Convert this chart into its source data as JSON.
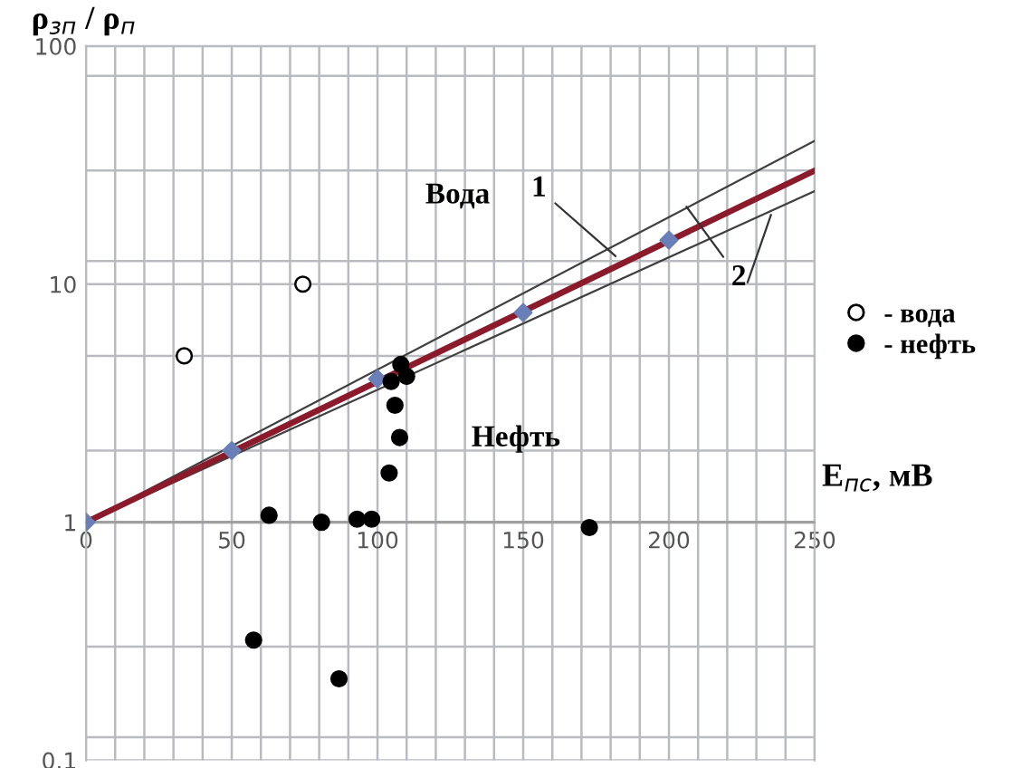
{
  "chart_data": {
    "type": "scatter",
    "xlabel": "E$_{пс}$, мВ",
    "ylabel": "ρ$_{зп}$ / ρ$_{п}$",
    "log": "y",
    "grid": true,
    "legend": "right",
    "xlim": [
      0,
      250
    ],
    "ylim": [
      0.1,
      100
    ],
    "xticks": [
      0,
      {
        "value": 10,
        "label": null
      },
      {
        "value": 20,
        "label": null
      },
      {
        "value": 30,
        "label": null
      },
      {
        "value": 40,
        "label": null
      },
      50,
      {
        "value": 60,
        "label": null
      },
      {
        "value": 70,
        "label": null
      },
      {
        "value": 80,
        "label": null
      },
      {
        "value": 90,
        "label": null
      },
      100,
      {
        "value": 110,
        "label": null
      },
      {
        "value": 120,
        "label": null
      },
      {
        "value": 130,
        "label": null
      },
      {
        "value": 140,
        "label": null
      },
      150,
      {
        "value": 160,
        "label": null
      },
      {
        "value": 170,
        "label": null
      },
      {
        "value": 180,
        "label": null
      },
      {
        "value": 190,
        "label": null
      },
      200,
      {
        "value": 210,
        "label": null
      },
      {
        "value": 220,
        "label": null
      },
      {
        "value": 230,
        "label": null
      },
      {
        "value": 240,
        "label": null
      },
      250
    ],
    "yticks": [
      0.1,
      {
        "value": 0.125,
        "label": null
      },
      {
        "value": 0.3,
        "label": null
      },
      1,
      {
        "value": 2,
        "label": null
      },
      {
        "value": 5,
        "label": null
      },
      10,
      {
        "value": 12.5,
        "label": null
      },
      {
        "value": 30,
        "label": null
      },
      {
        "value": 75,
        "label": null
      },
      100
    ],
    "ref_lines": [
      {
        "axis": "y",
        "value": 1,
        "color": "#a0a0a0"
      }
    ],
    "series": [
      {
        "type": "line",
        "x": [
          0,
          250
        ],
        "values": [
          1,
          40
        ],
        "color": "#404040"
      },
      {
        "type": "line",
        "x": [
          0,
          250
        ],
        "values": [
          1,
          24.6
        ],
        "color": "#404040"
      },
      {
        "type": "line",
        "x": [
          0,
          250
        ],
        "values": [
          1,
          30
        ],
        "color": "#8b1a2b"
      },
      {
        "marker": "diamond",
        "x": [
          0,
          50,
          100,
          150,
          200
        ],
        "values": [
          1,
          2,
          4,
          7.6,
          15.3
        ],
        "color": "#6a7fb8"
      },
      {
        "marker": "circle",
        "name": "- вода",
        "x": [
          33.7,
          74.4
        ],
        "values": [
          5,
          10
        ],
        "color": "#ffffff"
      },
      {
        "marker": "circle",
        "name": "- нефть",
        "x": [
          57.5,
          62.8,
          80.8,
          86.8,
          93,
          98,
          104,
          104.7,
          106,
          107.6,
          108,
          110,
          172.7
        ],
        "values": [
          0.32,
          1.07,
          1.0,
          0.22,
          1.03,
          1.03,
          1.61,
          3.9,
          3.1,
          2.27,
          4.6,
          4.1,
          0.95
        ],
        "color": "#000000"
      }
    ],
    "annotations": [
      "Вода",
      "Нефть",
      {
        "text": "1",
        "x": 183,
        "y": 12.7
      },
      {
        "text": "2",
        "x": 205,
        "y": 22
      }
    ]
  }
}
